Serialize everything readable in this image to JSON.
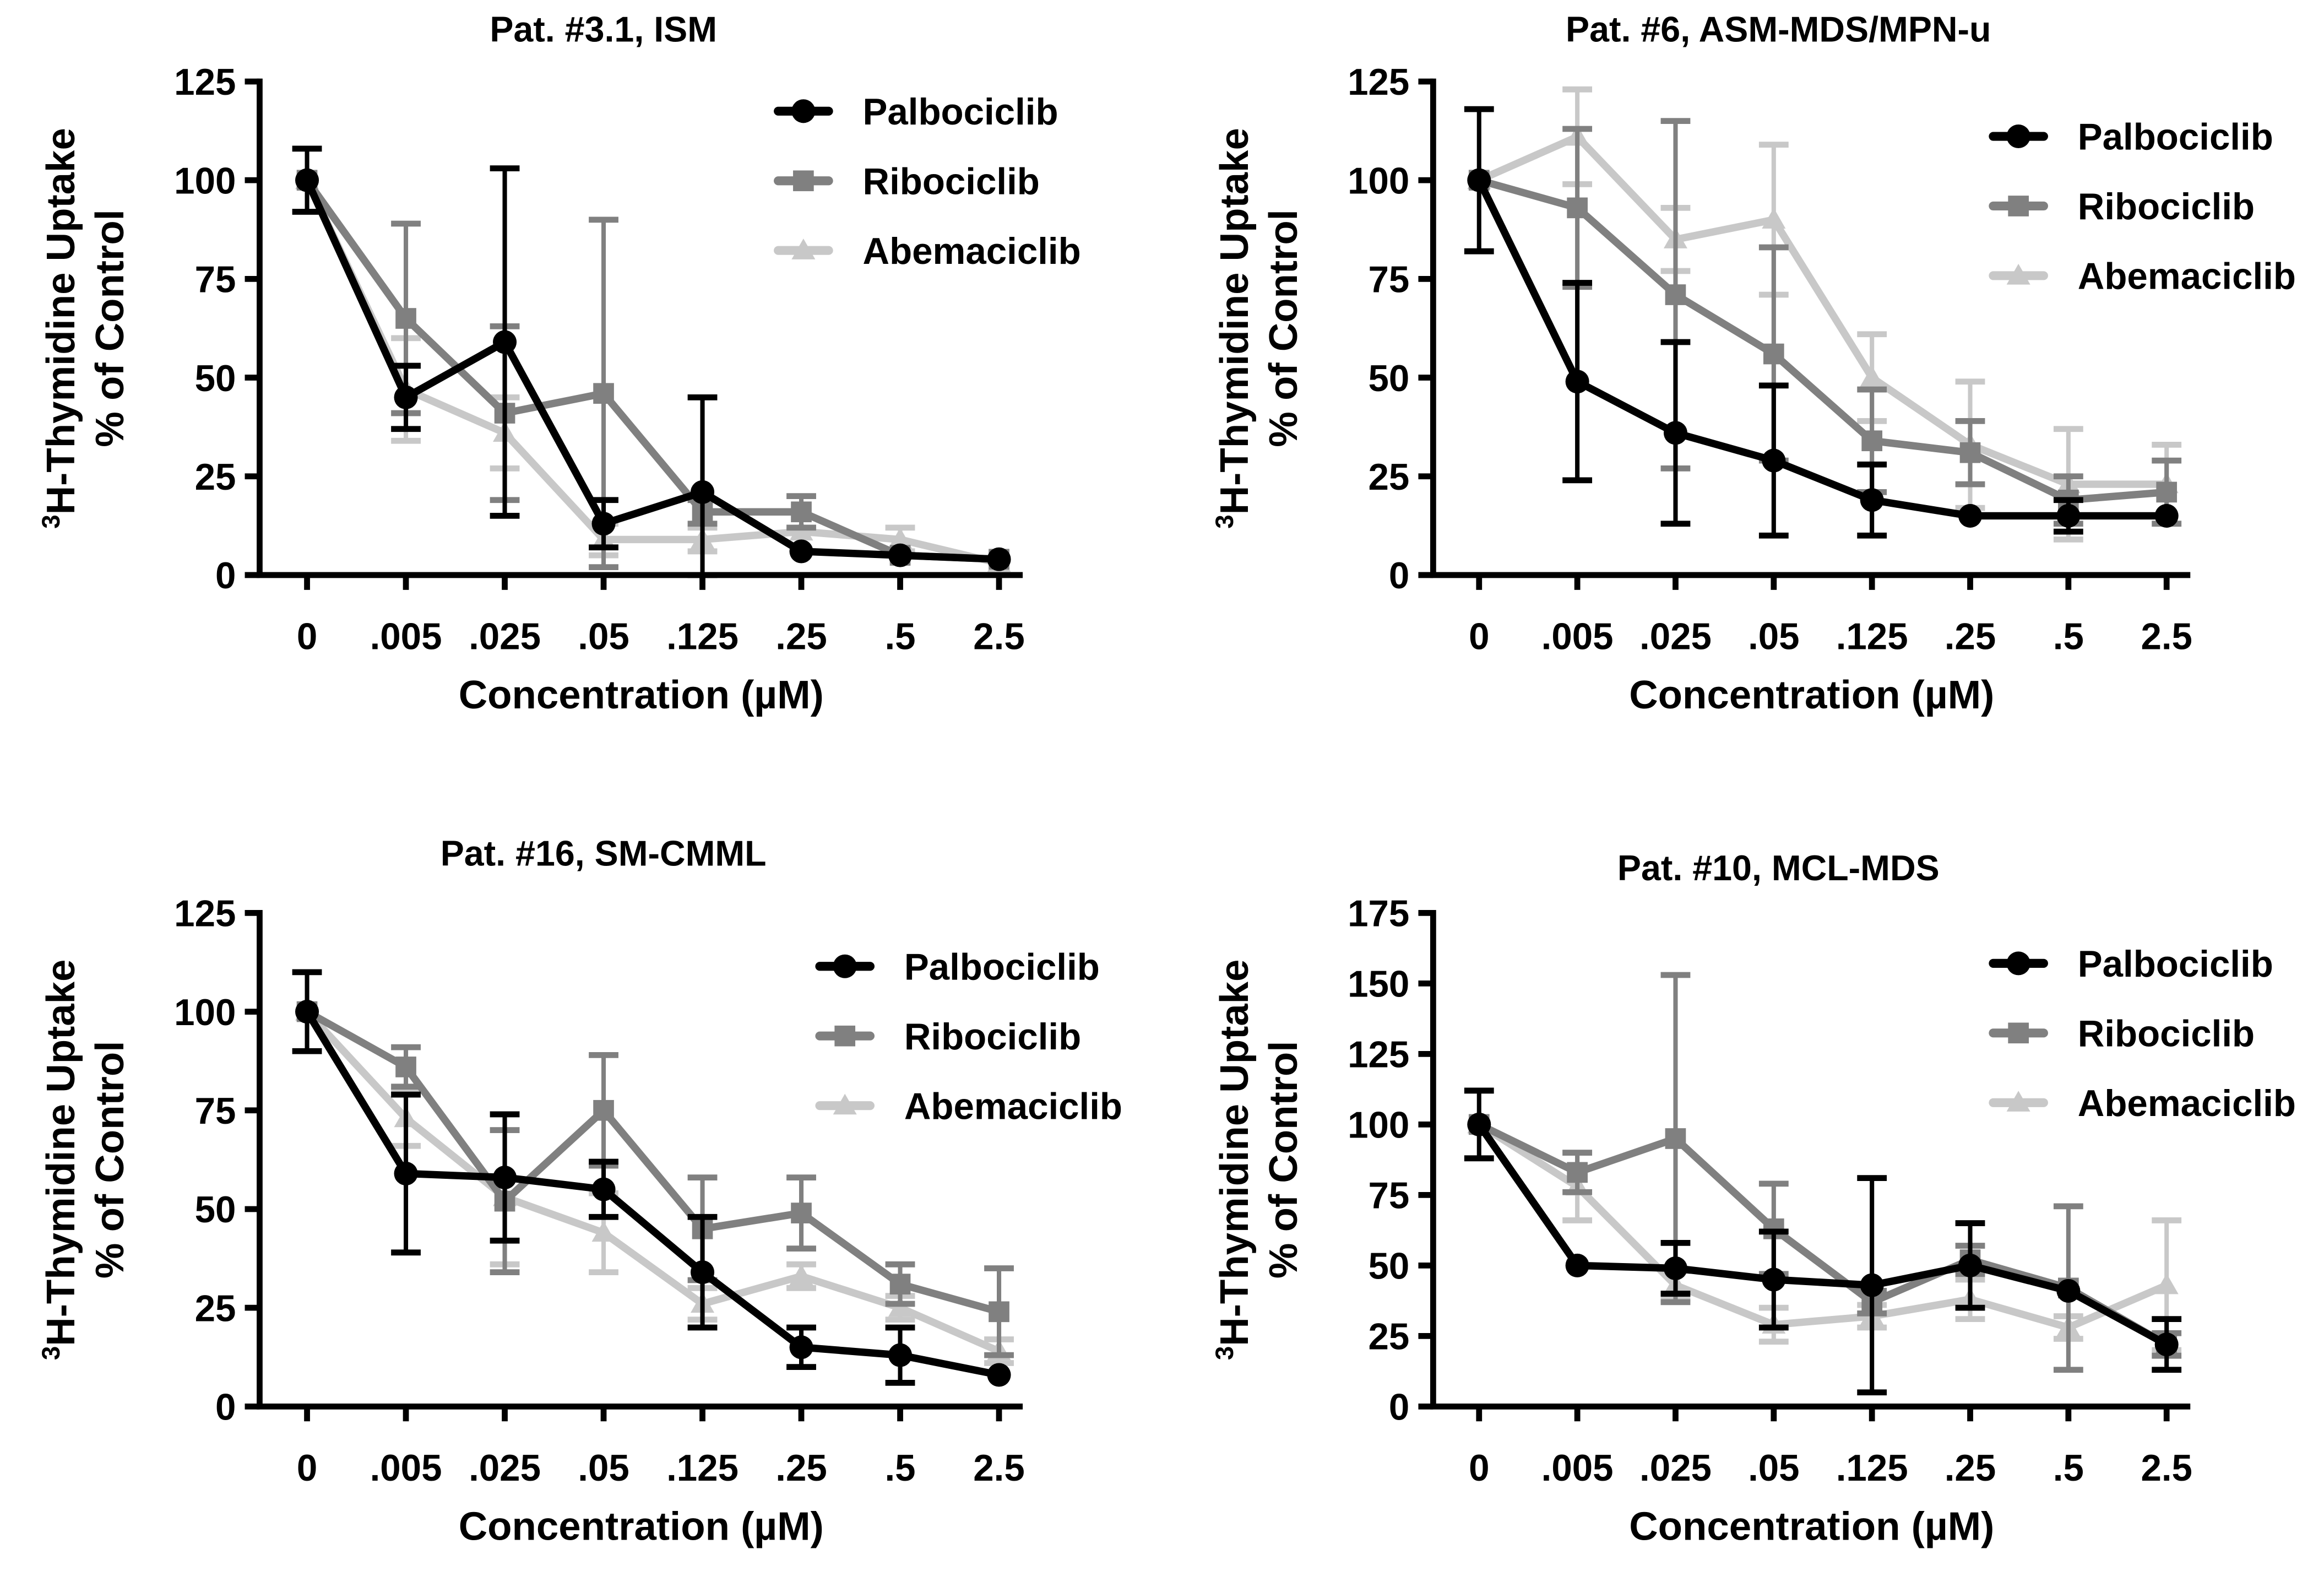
{
  "chart_data": [
    {
      "type": "line",
      "title": "Pat. #3.1, ISM",
      "xlabel": "Concentration (µM)",
      "ylabel_sup": "3",
      "ylabel_line1": "H-Thymidine Uptake",
      "ylabel_line2": "% of Control",
      "categories": [
        "0",
        ".005",
        ".025",
        ".05",
        ".125",
        ".25",
        ".5",
        "2.5"
      ],
      "ylim": [
        0,
        125
      ],
      "yticks": [
        0,
        25,
        50,
        75,
        100,
        125
      ],
      "legend": "top-right",
      "series": [
        {
          "name": "Palbociclib",
          "marker": "circle",
          "color": "#000000",
          "values": [
            100,
            45,
            59,
            13,
            21,
            6,
            5,
            4
          ],
          "errors": [
            8,
            8,
            44,
            6,
            24,
            0,
            0,
            0
          ]
        },
        {
          "name": "Ribociclib",
          "marker": "square",
          "color": "#808080",
          "values": [
            100,
            65,
            41,
            46,
            16,
            16,
            5,
            4
          ],
          "errors": [
            0,
            24,
            22,
            44,
            3,
            4,
            0,
            0
          ]
        },
        {
          "name": "Abemaciclib",
          "marker": "triangle",
          "color": "#c8c8c8",
          "values": [
            100,
            47,
            36,
            9,
            9,
            11,
            9,
            3
          ],
          "errors": [
            0,
            13,
            9,
            4,
            3,
            0,
            3,
            0
          ]
        }
      ]
    },
    {
      "type": "line",
      "title": "Pat. #6, ASM-MDS/MPN-u",
      "xlabel": "Concentration (µM)",
      "ylabel_sup": "3",
      "ylabel_line1": "H-Thymidine Uptake",
      "ylabel_line2": "% of Control",
      "categories": [
        "0",
        ".005",
        ".025",
        ".05",
        ".125",
        ".25",
        ".5",
        "2.5"
      ],
      "ylim": [
        0,
        125
      ],
      "yticks": [
        0,
        25,
        50,
        75,
        100,
        125
      ],
      "legend": "top-right",
      "series": [
        {
          "name": "Palbociclib",
          "marker": "circle",
          "color": "#000000",
          "values": [
            100,
            49,
            36,
            29,
            19,
            15,
            15,
            15
          ],
          "errors": [
            18,
            25,
            23,
            19,
            9,
            0,
            4,
            0
          ]
        },
        {
          "name": "Ribociclib",
          "marker": "square",
          "color": "#808080",
          "values": [
            100,
            93,
            71,
            56,
            34,
            31,
            19,
            21
          ],
          "errors": [
            0,
            20,
            44,
            27,
            13,
            8,
            6,
            8
          ]
        },
        {
          "name": "Abemaciclib",
          "marker": "triangle",
          "color": "#c8c8c8",
          "values": [
            100,
            111,
            85,
            90,
            50,
            33,
            23,
            23
          ],
          "errors": [
            0,
            12,
            8,
            19,
            11,
            16,
            14,
            10
          ]
        }
      ]
    },
    {
      "type": "line",
      "title": "Pat. #16, SM-CMML",
      "xlabel": "Concentration (µM)",
      "ylabel_sup": "3",
      "ylabel_line1": "H-Thymidine Uptake",
      "ylabel_line2": "% of Control",
      "categories": [
        "0",
        ".005",
        ".025",
        ".05",
        ".125",
        ".25",
        ".5",
        "2.5"
      ],
      "ylim": [
        0,
        125
      ],
      "yticks": [
        0,
        25,
        50,
        75,
        100,
        125
      ],
      "legend": "top-right",
      "series": [
        {
          "name": "Palbociclib",
          "marker": "circle",
          "color": "#000000",
          "values": [
            100,
            59,
            58,
            55,
            34,
            15,
            13,
            8
          ],
          "errors": [
            10,
            20,
            16,
            7,
            14,
            5,
            7,
            0
          ]
        },
        {
          "name": "Ribociclib",
          "marker": "square",
          "color": "#808080",
          "values": [
            100,
            86,
            52,
            75,
            45,
            49,
            31,
            24
          ],
          "errors": [
            0,
            5,
            18,
            14,
            13,
            9,
            5,
            11
          ]
        },
        {
          "name": "Abemaciclib",
          "marker": "triangle",
          "color": "#c8c8c8",
          "values": [
            100,
            73,
            53,
            44,
            26,
            33,
            25,
            14
          ],
          "errors": [
            0,
            7,
            17,
            10,
            4,
            3,
            3,
            3
          ]
        }
      ]
    },
    {
      "type": "line",
      "title": "Pat. #10, MCL-MDS",
      "xlabel": "Concentration (µM)",
      "ylabel_sup": "3",
      "ylabel_line1": "H-Thymidine Uptake",
      "ylabel_line2": "% of Control",
      "categories": [
        "0",
        ".005",
        ".025",
        ".05",
        ".125",
        ".25",
        ".5",
        "2.5"
      ],
      "ylim": [
        0,
        175
      ],
      "yticks": [
        0,
        25,
        50,
        75,
        100,
        125,
        150,
        175
      ],
      "legend": "top-right",
      "series": [
        {
          "name": "Palbociclib",
          "marker": "circle",
          "color": "#000000",
          "values": [
            100,
            50,
            49,
            45,
            43,
            50,
            41,
            22
          ],
          "errors": [
            12,
            0,
            9,
            17,
            38,
            15,
            0,
            9
          ]
        },
        {
          "name": "Ribociclib",
          "marker": "square",
          "color": "#808080",
          "values": [
            100,
            83,
            95,
            63,
            37,
            52,
            42,
            22
          ],
          "errors": [
            0,
            7,
            58,
            16,
            4,
            5,
            29,
            4
          ]
        },
        {
          "name": "Abemaciclib",
          "marker": "triangle",
          "color": "#c8c8c8",
          "values": [
            100,
            78,
            43,
            29,
            32,
            38,
            28,
            43
          ],
          "errors": [
            0,
            12,
            5,
            6,
            4,
            7,
            4,
            23
          ]
        }
      ]
    }
  ]
}
